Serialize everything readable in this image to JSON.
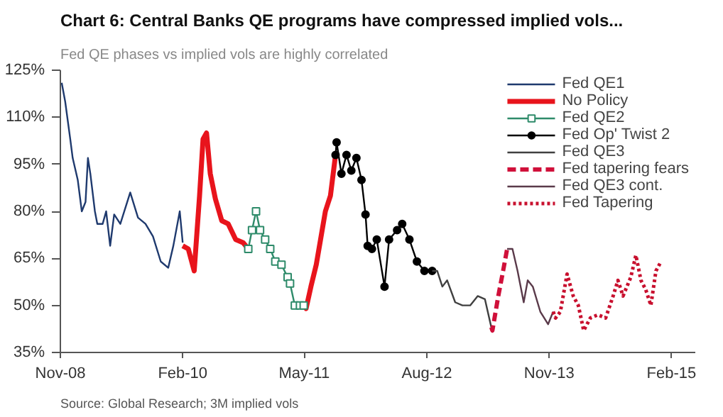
{
  "chart_data": {
    "type": "line",
    "title": "Chart 6: Central Banks QE programs have compressed implied vols...",
    "subtitle": "Fed QE phases vs implied vols are highly correlated",
    "annotations": [
      "Source: Global Research; 3M implied vols"
    ],
    "xlim": [
      "2008-11",
      "2015-05"
    ],
    "xticks": [
      {
        "value": "2008-11",
        "label": "Nov-08"
      },
      {
        "value": "2010-02",
        "label": "Feb-10"
      },
      {
        "value": "2011-05",
        "label": "May-11"
      },
      {
        "value": "2012-08",
        "label": "Aug-12"
      },
      {
        "value": "2013-11",
        "label": "Nov-13"
      },
      {
        "value": "2015-02",
        "label": "Feb-15"
      }
    ],
    "ylim": [
      35,
      125
    ],
    "yticks": [
      {
        "value": 35,
        "label": "35%"
      },
      {
        "value": 50,
        "label": "50%"
      },
      {
        "value": 65,
        "label": "65%"
      },
      {
        "value": 80,
        "label": "80%"
      },
      {
        "value": 95,
        "label": "95%"
      },
      {
        "value": 110,
        "label": "110%"
      },
      {
        "value": 125,
        "label": "125%"
      }
    ],
    "grid": false,
    "legend": "top right",
    "series": [
      {
        "name": "Fed QE1",
        "color": "#1f3a6e",
        "line_style": "solid",
        "marker": "none",
        "x": [
          "2008-11-06",
          "2008-11-19",
          "2008-12-08",
          "2008-12-17",
          "2009-01-05",
          "2009-01-20",
          "2009-02-03",
          "2009-02-12",
          "2009-02-21",
          "2009-03-10",
          "2009-03-19",
          "2009-04-08",
          "2009-04-21",
          "2009-05-06",
          "2009-05-21",
          "2009-06-13",
          "2009-07-20",
          "2009-08-18",
          "2009-09-15",
          "2009-10-13",
          "2009-11-11",
          "2009-12-09",
          "2009-12-28",
          "2010-01-21",
          "2010-02-01"
        ],
        "values": [
          121,
          115,
          103,
          97,
          90,
          80,
          83,
          97,
          92,
          80,
          76,
          76,
          80,
          69,
          79,
          76,
          86,
          78,
          76,
          72,
          64,
          62,
          69,
          80,
          70
        ]
      },
      {
        "name": "No Policy",
        "color": "#e8141c",
        "line_style": "solid",
        "marker": "none",
        "x": [
          "2010-02-01",
          "2010-02-22",
          "2010-03-16",
          "2010-04-05",
          "2010-04-18",
          "2010-05-01",
          "2010-05-15",
          "2010-06-03",
          "2010-06-27",
          "2010-07-21",
          "2010-08-18",
          "2010-09-15",
          "2010-10-04",
          "2011-01-01",
          "2011-04-29",
          "2011-05-08",
          "2011-05-26",
          "2011-06-15",
          "2011-07-01",
          "2011-07-19",
          "2011-08-07",
          "2011-08-26"
        ],
        "values": [
          69,
          68,
          61,
          85,
          103,
          105,
          92,
          84,
          77,
          76,
          71,
          70,
          68,
          null,
          50,
          49,
          56,
          63,
          71,
          80,
          85,
          98
        ]
      },
      {
        "name": "Fed QE2",
        "color": "#2e8b6a",
        "line_style": "solid",
        "marker": "square",
        "x": [
          "2010-10-04",
          "2010-10-18",
          "2010-11-02",
          "2010-11-17",
          "2010-12-06",
          "2010-12-25",
          "2011-01-13",
          "2011-02-05",
          "2011-02-28",
          "2011-03-09",
          "2011-03-27",
          "2011-04-15",
          "2011-04-29"
        ],
        "values": [
          68,
          74,
          80,
          74,
          71,
          68,
          64,
          63,
          59,
          57,
          50,
          50,
          50
        ]
      },
      {
        "name": "Fed Op' Twist 2",
        "color": "#000000",
        "line_style": "solid",
        "marker": "circle",
        "x": [
          "2011-08-26",
          "2011-08-30",
          "2011-09-17",
          "2011-10-06",
          "2011-10-24",
          "2011-11-12",
          "2011-12-01",
          "2011-12-16",
          "2011-12-24",
          "2012-01-09",
          "2012-01-27",
          "2012-02-25",
          "2012-03-13",
          "2012-04-12",
          "2012-05-01",
          "2012-05-28",
          "2012-06-25",
          "2012-07-23",
          "2012-08-21"
        ],
        "values": [
          98,
          102,
          92,
          98,
          93,
          97,
          90,
          79,
          69,
          68,
          71,
          56,
          71,
          74,
          76,
          71,
          64,
          61,
          61
        ]
      },
      {
        "name": "Fed QE3",
        "color": "#404040",
        "line_style": "solid",
        "marker": "none",
        "x": [
          "2012-08-21",
          "2012-09-09",
          "2012-09-28",
          "2012-10-16",
          "2012-11-15",
          "2012-12-12",
          "2013-01-10",
          "2013-02-07",
          "2013-03-06",
          "2013-03-30"
        ],
        "values": [
          61,
          61,
          56,
          58,
          51,
          50,
          50,
          53,
          52,
          43
        ]
      },
      {
        "name": "Fed tapering fears",
        "color": "#d0103a",
        "line_style": "dashed",
        "marker": "none",
        "x": [
          "2013-03-30",
          "2013-04-03",
          "2013-04-25",
          "2013-05-13",
          "2013-05-28"
        ],
        "values": [
          43,
          42,
          53,
          61,
          68
        ]
      },
      {
        "name": "Fed QE3 cont.",
        "color": "#5a3a4a",
        "line_style": "solid",
        "marker": "none",
        "x": [
          "2013-05-28",
          "2013-06-17",
          "2013-07-06",
          "2013-07-29",
          "2013-08-13",
          "2013-09-01",
          "2013-09-29",
          "2013-10-28",
          "2013-11-16"
        ],
        "values": [
          68,
          68,
          61,
          51,
          58,
          56,
          48,
          44,
          48
        ]
      },
      {
        "name": "Fed Tapering",
        "color": "#c8102e",
        "line_style": "dotted",
        "marker": "none",
        "x": [
          "2013-11-16",
          "2013-11-25",
          "2013-12-13",
          "2014-01-07",
          "2014-01-30",
          "2014-02-18",
          "2014-03-10",
          "2014-04-04",
          "2014-05-02",
          "2014-05-31",
          "2014-06-28",
          "2014-07-16",
          "2014-08-04",
          "2014-09-02",
          "2014-09-21",
          "2014-10-10",
          "2014-10-28",
          "2014-11-16",
          "2014-12-05",
          "2014-12-24"
        ],
        "values": [
          48,
          46,
          48,
          60,
          53,
          50,
          42,
          46,
          47,
          46,
          53,
          58,
          53,
          59,
          66,
          58,
          55,
          50,
          61,
          64
        ]
      }
    ]
  }
}
